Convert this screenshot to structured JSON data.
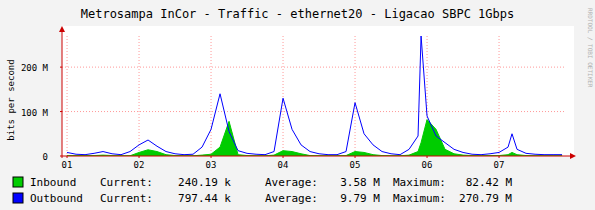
{
  "chart_data": {
    "type": "line",
    "title": "Metrosampa InCor - Traffic - ethernet20 - Ligacao SBPC 1Gbps",
    "y_label": "bits per second",
    "annotations": [
      "RRDTOOL / TOBI OETIKER"
    ],
    "stat_labels": [
      "Current:",
      "Average:",
      "Maximum:"
    ],
    "xlim": [
      0.93,
      7.93
    ],
    "xticks": [
      {
        "value": 1,
        "label": "01"
      },
      {
        "value": 2,
        "label": "02"
      },
      {
        "value": 3,
        "label": "03"
      },
      {
        "value": 4,
        "label": "04"
      },
      {
        "value": 5,
        "label": "05"
      },
      {
        "value": 6,
        "label": "06"
      },
      {
        "value": 7,
        "label": "07"
      }
    ],
    "ylim": [
      0,
      270000000.0
    ],
    "yticks": [
      0,
      {
        "value": 100000000.0,
        "label": "100 M"
      },
      {
        "value": 200000000.0,
        "label": "200 M"
      }
    ],
    "grid": true,
    "x": [
      1,
      1.125,
      1.25,
      1.375,
      1.5,
      1.625,
      1.75,
      1.875,
      2,
      2.125,
      2.25,
      2.375,
      2.5,
      2.625,
      2.75,
      2.875,
      3,
      3.125,
      3.25,
      3.375,
      3.5,
      3.625,
      3.75,
      3.875,
      4,
      4.125,
      4.25,
      4.375,
      4.5,
      4.625,
      4.75,
      4.875,
      5,
      5.125,
      5.25,
      5.375,
      5.5,
      5.625,
      5.75,
      5.875,
      5.917,
      6,
      6.125,
      6.25,
      6.375,
      6.5,
      6.625,
      6.75,
      6.875,
      7,
      7.125,
      7.18,
      7.25,
      7.375,
      7.5,
      7.625,
      7.75,
      7.875
    ],
    "series": [
      {
        "name": "Inbound",
        "type": "area",
        "color": "#00cc00",
        "current": {
          "value": 240190,
          "label": "240.19 k"
        },
        "average": {
          "value": 3580000,
          "label": "3.58 M"
        },
        "maximum": {
          "value": 82420000,
          "label": "82.42 M"
        },
        "values": [
          1000000.0,
          1000000.0,
          1000000.0,
          1000000.0,
          2000000.0,
          1000000.0,
          500000.0,
          500000.0,
          8000000.0,
          14000000.0,
          10000000.0,
          3000000.0,
          1000000.0,
          500000.0,
          500000.0,
          2000000.0,
          4000000.0,
          20000000.0,
          78000000.0,
          3000000.0,
          1000000.0,
          500000.0,
          500000.0,
          2000000.0,
          12000000.0,
          10000000.0,
          5000000.0,
          1000000.0,
          500000.0,
          500000.0,
          500000.0,
          1000000.0,
          10000000.0,
          8000000.0,
          3000000.0,
          1000000.0,
          500000.0,
          500000.0,
          2000000.0,
          10000000.0,
          30000000.0,
          82000000.0,
          60000000.0,
          15000000.0,
          5000000.0,
          2000000.0,
          1000000.0,
          500000.0,
          1000000.0,
          1000000.0,
          3000000.0,
          8000000.0,
          3000000.0,
          1000000.0,
          500000.0,
          500000.0,
          500000.0,
          500000.0
        ]
      },
      {
        "name": "Outbound",
        "type": "line",
        "color": "#0000ff",
        "current": {
          "value": 797440,
          "label": "797.44 k"
        },
        "average": {
          "value": 9790000,
          "label": "9.79 M"
        },
        "maximum": {
          "value": 270790000,
          "label": "270.79 M"
        },
        "values": [
          8000000.0,
          4000000.0,
          3000000.0,
          6000000.0,
          10000000.0,
          5000000.0,
          3000000.0,
          10000000.0,
          25000000.0,
          36000000.0,
          22000000.0,
          10000000.0,
          5000000.0,
          3000000.0,
          4000000.0,
          20000000.0,
          60000000.0,
          140000000.0,
          55000000.0,
          12000000.0,
          6000000.0,
          4000000.0,
          3000000.0,
          10000000.0,
          130000000.0,
          60000000.0,
          25000000.0,
          10000000.0,
          5000000.0,
          3000000.0,
          3000000.0,
          10000000.0,
          120000000.0,
          50000000.0,
          25000000.0,
          10000000.0,
          5000000.0,
          3000000.0,
          15000000.0,
          45000000.0,
          270000000.0,
          90000000.0,
          45000000.0,
          30000000.0,
          15000000.0,
          8000000.0,
          4000000.0,
          3000000.0,
          5000000.0,
          8000000.0,
          20000000.0,
          50000000.0,
          15000000.0,
          6000000.0,
          4000000.0,
          3000000.0,
          3000000.0,
          3000000.0
        ]
      }
    ]
  }
}
